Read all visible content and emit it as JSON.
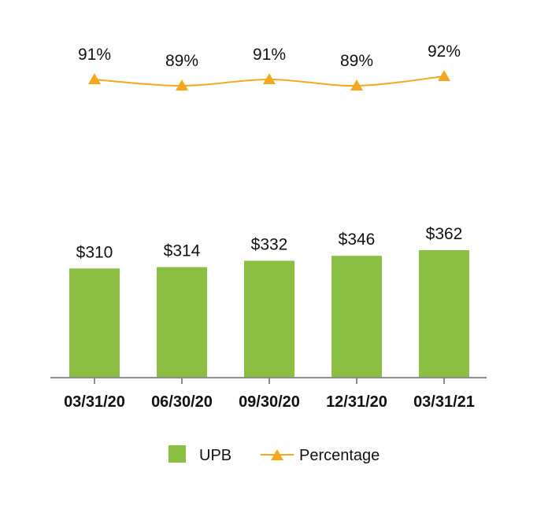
{
  "chart_data": {
    "type": "bar",
    "categories": [
      "03/31/20",
      "06/30/20",
      "09/30/20",
      "12/31/20",
      "03/31/21"
    ],
    "series": [
      {
        "name": "UPB",
        "type": "bar",
        "values": [
          310,
          314,
          332,
          346,
          362
        ],
        "labels": [
          "$310",
          "$314",
          "$332",
          "$346",
          "$362"
        ],
        "color": "#8bbf44"
      },
      {
        "name": "Percentage",
        "type": "line",
        "values": [
          91,
          89,
          91,
          89,
          92
        ],
        "labels": [
          "91%",
          "89%",
          "91%",
          "89%",
          "92%"
        ],
        "color": "#f5a81c",
        "marker": "triangle"
      }
    ],
    "title": "",
    "xlabel": "",
    "ylabel": "",
    "ylim": [
      0,
      500
    ],
    "grid": false,
    "legend_position": "bottom"
  },
  "legend": {
    "items": [
      {
        "label": "UPB",
        "shape": "square",
        "color": "#8bbf44"
      },
      {
        "label": "Percentage",
        "shape": "line-triangle",
        "color": "#f5a81c"
      }
    ]
  }
}
